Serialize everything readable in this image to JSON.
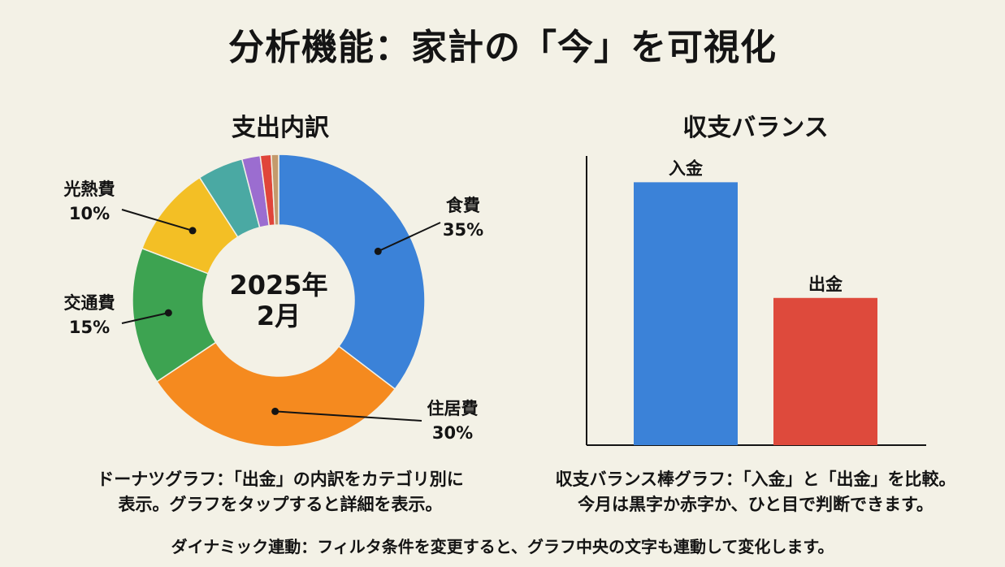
{
  "title": "分析機能：家計の「今」を可視化",
  "chart_data": [
    {
      "type": "pie",
      "title": "支出内訳",
      "center_label": [
        "2025年",
        "2月"
      ],
      "slices": [
        {
          "label": "食費",
          "percent_label": "35%",
          "value": 35,
          "color": "#3b82d8"
        },
        {
          "label": "住居費",
          "percent_label": "30%",
          "value": 30,
          "color": "#f58a1f"
        },
        {
          "label": "交通費",
          "percent_label": "15%",
          "value": 15,
          "color": "#3da351"
        },
        {
          "label": "光熱費",
          "percent_label": "10%",
          "value": 10,
          "color": "#f3bf25"
        },
        {
          "label": "",
          "percent_label": "",
          "value": 5,
          "color": "#4aa9a3"
        },
        {
          "label": "",
          "percent_label": "",
          "value": 2,
          "color": "#9b6dd0"
        },
        {
          "label": "",
          "percent_label": "",
          "value": 1.2,
          "color": "#e0453a"
        },
        {
          "label": "",
          "percent_label": "",
          "value": 0.8,
          "color": "#c49a6c"
        }
      ],
      "legend": "none"
    },
    {
      "type": "bar",
      "title": "収支バランス",
      "categories": [
        "入金",
        "出金"
      ],
      "values": [
        100,
        56
      ],
      "colors": [
        "#3b82d8",
        "#de4a3c"
      ],
      "ylim": [
        0,
        110
      ],
      "grid": false
    }
  ],
  "captions": {
    "donut": [
      "ドーナツグラフ：「出金」の内訳をカテゴリ別に",
      "表示。グラフをタップすると詳細を表示。"
    ],
    "bar": [
      "収支バランス棒グラフ：「入金」と「出金」を比較。",
      "今月は黒字か赤字か、ひと目で判断できます。"
    ],
    "footer": "ダイナミック連動：フィルタ条件を変更すると、グラフ中央の文字も連動して変化します。"
  }
}
